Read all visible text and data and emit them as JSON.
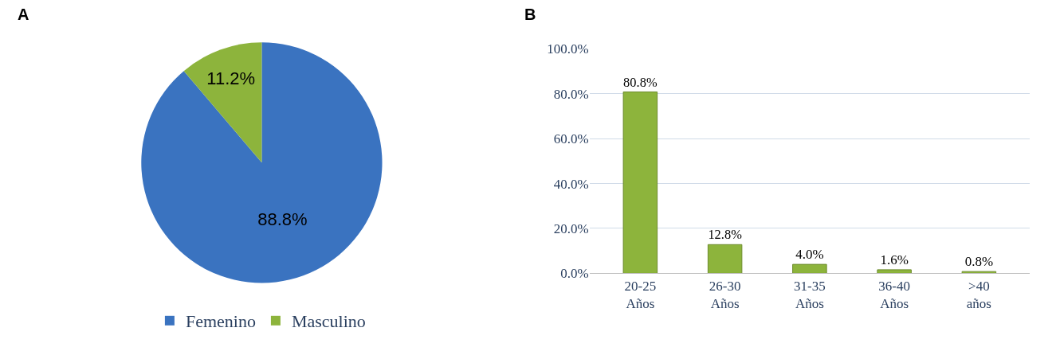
{
  "chart_data": [
    {
      "type": "pie",
      "title": "A",
      "categories": [
        "Femenino",
        "Masculino"
      ],
      "values": [
        88.8,
        11.2
      ],
      "colors": [
        "#3a73c0",
        "#8db43c"
      ],
      "value_labels": [
        "88.8%",
        "11.2%"
      ],
      "legend": "bottom"
    },
    {
      "type": "bar",
      "title": "B",
      "categories": [
        "20-25\nAños",
        "26-30\nAños",
        "31-35\nAños",
        "36-40\nAños",
        ">40\naños"
      ],
      "values": [
        80.8,
        12.8,
        4.0,
        1.6,
        0.8
      ],
      "color": "#8db43c",
      "value_labels": [
        "80.8%",
        "12.8%",
        "4.0%",
        "1.6%",
        "0.8%"
      ],
      "ylim": [
        0,
        100
      ],
      "yticks": [
        {
          "value": 0,
          "label": "0.0%"
        },
        {
          "value": 20,
          "label": "20.0%"
        },
        {
          "value": 40,
          "label": "40.0%"
        },
        {
          "value": 60,
          "label": "60.0%"
        },
        {
          "value": 80,
          "label": "80.0%"
        },
        {
          "value": 100,
          "label": "100.0%"
        }
      ],
      "grid": "y"
    }
  ]
}
